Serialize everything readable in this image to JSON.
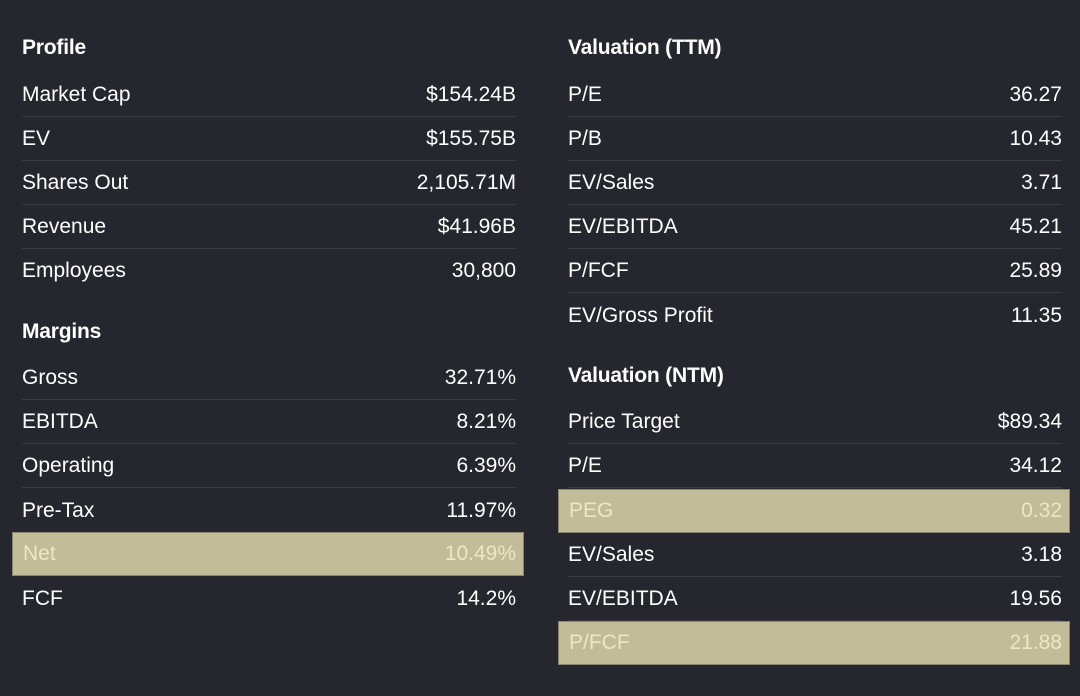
{
  "profile": {
    "title": "Profile",
    "rows": [
      {
        "label": "Market Cap",
        "value": "$154.24B"
      },
      {
        "label": "EV",
        "value": "$155.75B"
      },
      {
        "label": "Shares Out",
        "value": "2,105.71M"
      },
      {
        "label": "Revenue",
        "value": "$41.96B"
      },
      {
        "label": "Employees",
        "value": "30,800"
      }
    ]
  },
  "margins": {
    "title": "Margins",
    "rows": [
      {
        "label": "Gross",
        "value": "32.71%"
      },
      {
        "label": "EBITDA",
        "value": "8.21%"
      },
      {
        "label": "Operating",
        "value": "6.39%"
      },
      {
        "label": "Pre-Tax",
        "value": "11.97%"
      },
      {
        "label": "Net",
        "value": "10.49%",
        "highlighted": true
      },
      {
        "label": "FCF",
        "value": "14.2%"
      }
    ]
  },
  "valuation_ttm": {
    "title": "Valuation (TTM)",
    "rows": [
      {
        "label": "P/E",
        "value": "36.27"
      },
      {
        "label": "P/B",
        "value": "10.43"
      },
      {
        "label": "EV/Sales",
        "value": "3.71"
      },
      {
        "label": "EV/EBITDA",
        "value": "45.21"
      },
      {
        "label": "P/FCF",
        "value": "25.89"
      },
      {
        "label": "EV/Gross Profit",
        "value": "11.35"
      }
    ]
  },
  "valuation_ntm": {
    "title": "Valuation (NTM)",
    "rows": [
      {
        "label": "Price Target",
        "value": "$89.34"
      },
      {
        "label": "P/E",
        "value": "34.12"
      },
      {
        "label": "PEG",
        "value": "0.32",
        "highlighted": true
      },
      {
        "label": "EV/Sales",
        "value": "3.18"
      },
      {
        "label": "EV/EBITDA",
        "value": "19.56"
      },
      {
        "label": "P/FCF",
        "value": "21.88",
        "highlighted": true
      }
    ]
  },
  "colors": {
    "background": "#26262e",
    "highlight": "#c2bc98",
    "divider": "#3b3b44"
  }
}
